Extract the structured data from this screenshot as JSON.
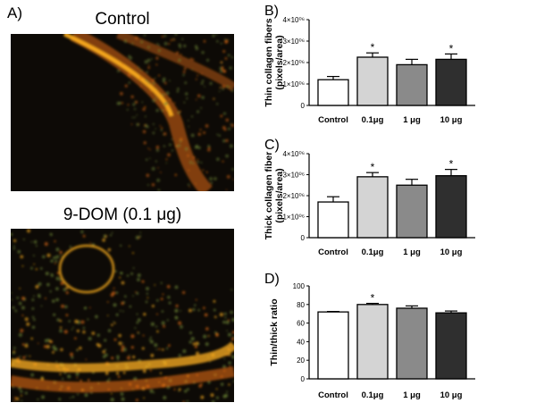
{
  "panel_a": {
    "letter": "A)",
    "images": [
      {
        "title": "Control"
      },
      {
        "title": "9-DOM (0.1 μg)"
      }
    ]
  },
  "colors": {
    "bar_fills": [
      "#ffffff",
      "#d4d4d4",
      "#8a8a8a",
      "#2f2f2f"
    ],
    "image_bg": "#0d0a06",
    "fiber_bright": "#ffb020",
    "fiber_mid": "#e06a10",
    "fiber_green": "#6f8a35"
  },
  "chart_data": [
    {
      "panel": "B)",
      "type": "bar",
      "categories": [
        "Control",
        "0.1μg",
        "1 μg",
        "10 μg"
      ],
      "values": [
        1200000,
        2250000,
        1900000,
        2150000
      ],
      "errors": [
        150000,
        200000,
        250000,
        250000
      ],
      "significant": [
        false,
        true,
        false,
        true
      ],
      "sig_marker": "*",
      "ylabel": [
        "Thin collagen fibers",
        "(pixels/area)"
      ],
      "ylim": [
        0,
        4000000
      ],
      "yticks": [
        0,
        1000000,
        2000000,
        3000000,
        4000000
      ],
      "ytick_labels": [
        "0",
        "1×10⁰⁶",
        "2×10⁰⁶",
        "3×10⁰⁶",
        "4×10⁰⁶"
      ]
    },
    {
      "panel": "C)",
      "type": "bar",
      "categories": [
        "Control",
        "0.1μg",
        "1 μg",
        "10 μg"
      ],
      "values": [
        1700000,
        2900000,
        2500000,
        2950000
      ],
      "errors": [
        250000,
        200000,
        280000,
        300000
      ],
      "significant": [
        false,
        true,
        false,
        true
      ],
      "sig_marker": "*",
      "ylabel": [
        "Thick collagen fiber",
        "(pixels/area)"
      ],
      "ylim": [
        0,
        4000000
      ],
      "yticks": [
        0,
        1000000,
        2000000,
        3000000,
        4000000
      ],
      "ytick_labels": [
        "0",
        "1×10⁰⁶",
        "2×10⁰⁶",
        "3×10⁰⁶",
        "4×10⁰⁶"
      ]
    },
    {
      "panel": "D)",
      "type": "bar",
      "categories": [
        "Control",
        "0.1μg",
        "1 μg",
        "10 μg"
      ],
      "values": [
        72,
        80,
        76,
        71
      ],
      "errors": [
        0.5,
        1.2,
        2.5,
        2
      ],
      "significant": [
        false,
        true,
        false,
        false
      ],
      "sig_marker": "*",
      "ylabel": [
        "Thin/thick ratio"
      ],
      "ylim": [
        0,
        100
      ],
      "yticks": [
        0,
        20,
        40,
        60,
        80,
        100
      ],
      "ytick_labels": [
        "0",
        "20",
        "40",
        "60",
        "80",
        "100"
      ]
    }
  ]
}
